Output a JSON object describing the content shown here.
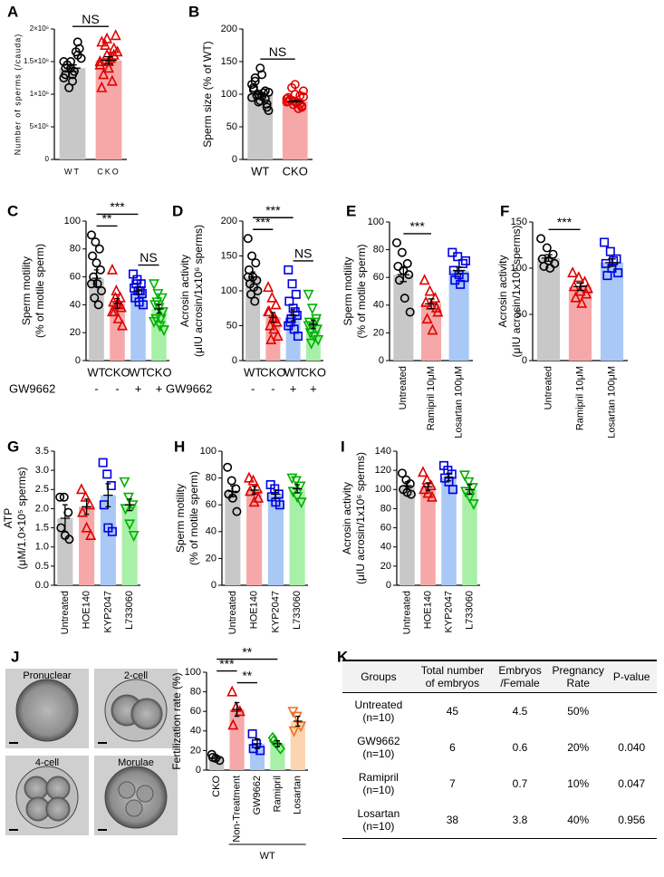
{
  "chart_data": [
    {
      "panel": "A",
      "type": "bar",
      "ylabel": [
        "Number of sperms (/cauda)"
      ],
      "categories": [
        "WT",
        "CKO"
      ],
      "values": [
        1400000,
        1520000
      ],
      "errors": [
        50000,
        55000
      ],
      "points": [
        [
          1500000,
          1400000,
          1600000,
          1300000,
          1200000,
          1700000,
          1450000,
          1350000,
          1550000,
          1100000,
          1650000,
          1250000,
          1500000,
          1800000,
          1400000,
          1300000
        ],
        [
          1500000,
          1600000,
          1700000,
          1800000,
          1400000,
          1900000,
          1300000,
          1550000,
          1650000,
          1750000,
          1200000,
          1450000,
          1850000,
          1600000,
          1100000,
          1500000
        ]
      ],
      "colors": [
        "#c8c8c8",
        "#f6a8a8"
      ],
      "point_colors": [
        "#000000",
        "#e00000"
      ],
      "markers": [
        "circle",
        "triangle"
      ],
      "ylim": [
        0,
        2000000
      ],
      "yticks": [
        0,
        {
          "value": 500000,
          "label": "5×10⁵"
        },
        {
          "value": 1000000,
          "label": "1×10⁶"
        },
        {
          "value": 1500000,
          "label": "1.5×10⁶"
        },
        {
          "value": 2000000,
          "label": "2×10⁶"
        }
      ],
      "annotations": [
        {
          "label": "NS",
          "from": 0,
          "to": 1
        }
      ]
    },
    {
      "panel": "B",
      "type": "bar",
      "ylabel": [
        "Sperm size (% of WT)"
      ],
      "categories": [
        "WT",
        "CKO"
      ],
      "values": [
        100,
        89
      ],
      "errors": [
        1,
        1
      ],
      "points": [
        [
          95,
          100,
          105,
          110,
          90,
          85,
          120,
          130,
          75,
          98,
          102,
          115,
          88,
          93,
          107,
          140,
          80,
          125,
          97,
          103
        ],
        [
          88,
          90,
          85,
          95,
          100,
          80,
          92,
          87,
          105,
          110,
          78,
          93,
          84,
          98,
          89,
          115,
          82,
          91,
          86,
          96
        ]
      ],
      "colors": [
        "#c8c8c8",
        "#f6a8a8"
      ],
      "point_colors": [
        "#000000",
        "#e00000"
      ],
      "markers": [
        "circle",
        "circle"
      ],
      "ylim": [
        0,
        200
      ],
      "yticks": [
        0,
        50,
        100,
        150,
        200
      ],
      "annotations": [
        {
          "label": "NS",
          "from": 0,
          "to": 1
        }
      ]
    },
    {
      "panel": "C",
      "type": "bar",
      "ylabel": [
        "Sperm motility",
        "(% of motile sperm)"
      ],
      "categories": [
        "WT",
        "CKO",
        "WT",
        "CKO"
      ],
      "row_label": "GW9662",
      "row_values": [
        "-",
        "-",
        "+",
        "+"
      ],
      "values": [
        59,
        41,
        50,
        37
      ],
      "errors": [
        6,
        3.5,
        2.5,
        3
      ],
      "points": [
        [
          90,
          85,
          80,
          75,
          70,
          65,
          60,
          55,
          50,
          45,
          40,
          55
        ],
        [
          65,
          50,
          45,
          42,
          40,
          38,
          35,
          30,
          25,
          45,
          40,
          35
        ],
        [
          62,
          58,
          55,
          52,
          50,
          48,
          45,
          42,
          40,
          55,
          50
        ],
        [
          55,
          48,
          45,
          40,
          38,
          35,
          30,
          25,
          22,
          42,
          30,
          28
        ]
      ],
      "colors": [
        "#c8c8c8",
        "#f6a8a8",
        "#a9c8f5",
        "#a8f0a8"
      ],
      "point_colors": [
        "#000000",
        "#e00000",
        "#0000e0",
        "#00b000"
      ],
      "markers": [
        "circle",
        "triangle",
        "square",
        "triangle-down"
      ],
      "ylim": [
        0,
        100
      ],
      "yticks": [
        0,
        20,
        40,
        60,
        80,
        100
      ],
      "annotations": [
        {
          "label": "NS",
          "from": 2,
          "to": 3
        },
        {
          "label": "**",
          "from": 0,
          "to": 1
        },
        {
          "label": "***",
          "from": 0,
          "to": 2
        }
      ]
    },
    {
      "panel": "D",
      "type": "bar",
      "ylabel": [
        "Acrosin activity",
        "(μIU acrosin/1x10⁶ sperms)"
      ],
      "categories": [
        "WT",
        "CKO",
        "WT",
        "CKO"
      ],
      "row_label": "GW9662",
      "row_values": [
        "-",
        "-",
        "+",
        "+"
      ],
      "values": [
        120,
        62,
        65,
        52
      ],
      "errors": [
        7,
        7,
        8,
        6
      ],
      "points": [
        [
          175,
          150,
          140,
          130,
          120,
          115,
          110,
          105,
          100,
          95,
          85,
          120
        ],
        [
          105,
          90,
          80,
          70,
          60,
          55,
          50,
          45,
          35,
          30,
          60,
          70
        ],
        [
          130,
          110,
          95,
          85,
          75,
          65,
          55,
          45,
          35,
          60,
          70,
          50
        ],
        [
          95,
          75,
          60,
          55,
          50,
          45,
          40,
          35,
          30,
          25,
          55,
          50
        ]
      ],
      "colors": [
        "#c8c8c8",
        "#f6a8a8",
        "#a9c8f5",
        "#a8f0a8"
      ],
      "point_colors": [
        "#000000",
        "#e00000",
        "#0000e0",
        "#00b000"
      ],
      "markers": [
        "circle",
        "triangle",
        "square",
        "triangle-down"
      ],
      "ylim": [
        0,
        200
      ],
      "yticks": [
        0,
        50,
        100,
        150,
        200
      ],
      "annotations": [
        {
          "label": "NS",
          "from": 2,
          "to": 3
        },
        {
          "label": "***",
          "from": 0,
          "to": 1
        },
        {
          "label": "***",
          "from": 0,
          "to": 2
        }
      ]
    },
    {
      "panel": "E",
      "type": "bar",
      "ylabel": [
        "Sperm motility",
        "(% of motile sperm)"
      ],
      "categories": [
        "Untreated",
        "Ramipril 10μM",
        "Losartan 100μM"
      ],
      "values": [
        62,
        41,
        65
      ],
      "errors": [
        5,
        3.5,
        2.5
      ],
      "points": [
        [
          85,
          78,
          70,
          68,
          65,
          62,
          58,
          45,
          35
        ],
        [
          58,
          50,
          45,
          42,
          40,
          38,
          30,
          22,
          35
        ],
        [
          78,
          75,
          70,
          65,
          62,
          60,
          58,
          55,
          72
        ]
      ],
      "colors": [
        "#c8c8c8",
        "#f6a8a8",
        "#a9c8f5"
      ],
      "point_colors": [
        "#000000",
        "#e00000",
        "#0000e0"
      ],
      "markers": [
        "circle",
        "triangle",
        "square"
      ],
      "ylim": [
        0,
        100
      ],
      "yticks": [
        0,
        20,
        40,
        60,
        80,
        100
      ],
      "annotations": [
        {
          "label": "***",
          "from": 0,
          "to": 1
        }
      ]
    },
    {
      "panel": "F",
      "type": "bar",
      "ylabel": [
        "Acrosin activity",
        "(μIU acrosin/1x10⁶ sperms)"
      ],
      "categories": [
        "Untreated",
        "Ramipril 10μM",
        "Losartan 100μM"
      ],
      "values": [
        111,
        80,
        106
      ],
      "errors": [
        3.5,
        4,
        4
      ],
      "points": [
        [
          132,
          122,
          115,
          110,
          108,
          105,
          102,
          100
        ],
        [
          95,
          90,
          85,
          80,
          75,
          72,
          68,
          62,
          78
        ],
        [
          128,
          118,
          110,
          105,
          100,
          95,
          92,
          108
        ]
      ],
      "colors": [
        "#c8c8c8",
        "#f6a8a8",
        "#a9c8f5"
      ],
      "point_colors": [
        "#000000",
        "#e00000",
        "#0000e0"
      ],
      "markers": [
        "circle",
        "triangle",
        "square"
      ],
      "ylim": [
        0,
        150
      ],
      "yticks": [
        0,
        50,
        100,
        150
      ],
      "annotations": [
        {
          "label": "***",
          "from": 0,
          "to": 1
        }
      ]
    },
    {
      "panel": "G",
      "type": "bar",
      "ylabel": [
        "ATP",
        "(μM/1.0×10⁵ sperms)"
      ],
      "categories": [
        "Untreated",
        "HOE140",
        "KYP2047",
        "L733060"
      ],
      "values": [
        1.75,
        2.05,
        2.35,
        2.1
      ],
      "errors": [
        0.35,
        0.2,
        0.3,
        0.15
      ],
      "points": [
        [
          2.3,
          2.3,
          1.9,
          1.5,
          1.3,
          1.2
        ],
        [
          2.5,
          2.3,
          2.1,
          1.9,
          1.5,
          1.3
        ],
        [
          3.2,
          2.9,
          2.6,
          2.1,
          1.5,
          1.4
        ],
        [
          2.7,
          2.3,
          2.1,
          2.0,
          1.6,
          1.3
        ]
      ],
      "colors": [
        "#c8c8c8",
        "#f6a8a8",
        "#a9c8f5",
        "#a8f0a8"
      ],
      "point_colors": [
        "#000000",
        "#e00000",
        "#0000e0",
        "#00b000"
      ],
      "markers": [
        "circle",
        "triangle",
        "square",
        "triangle-down"
      ],
      "ylim": [
        0,
        3.5
      ],
      "yticks": [
        {
          "value": 0,
          "label": "0.0"
        },
        0.5,
        {
          "value": 1,
          "label": "1.0"
        },
        1.5,
        {
          "value": 2,
          "label": "2.0"
        },
        2.5,
        {
          "value": 3,
          "label": "3.0"
        },
        3.5
      ]
    },
    {
      "panel": "H",
      "type": "bar",
      "ylabel": [
        "Sperm motility",
        "(% of motile sperm)"
      ],
      "categories": [
        "Untreated",
        "HOE140",
        "KYP2047",
        "L733060"
      ],
      "values": [
        70,
        71,
        68,
        72
      ],
      "errors": [
        4,
        3,
        3,
        3
      ],
      "points": [
        [
          88,
          78,
          72,
          68,
          65,
          55
        ],
        [
          80,
          78,
          72,
          70,
          62,
          65
        ],
        [
          75,
          72,
          68,
          66,
          62,
          60
        ],
        [
          80,
          78,
          74,
          70,
          66,
          62
        ]
      ],
      "colors": [
        "#c8c8c8",
        "#f6a8a8",
        "#a9c8f5",
        "#a8f0a8"
      ],
      "point_colors": [
        "#000000",
        "#e00000",
        "#0000e0",
        "#00b000"
      ],
      "markers": [
        "circle",
        "triangle",
        "square",
        "triangle-down"
      ],
      "ylim": [
        0,
        100
      ],
      "yticks": [
        0,
        20,
        40,
        60,
        80,
        100
      ]
    },
    {
      "panel": "I",
      "type": "bar",
      "ylabel": [
        "Acrosin activity",
        "(μIU acrosin/1x10⁶ sperms)"
      ],
      "categories": [
        "Untreated",
        "HOE140",
        "KYP2047",
        "L733060"
      ],
      "values": [
        104,
        103,
        113,
        100
      ],
      "errors": [
        4,
        4,
        4,
        5
      ],
      "points": [
        [
          117,
          110,
          106,
          100,
          97,
          95
        ],
        [
          118,
          110,
          104,
          100,
          96,
          92
        ],
        [
          125,
          120,
          116,
          112,
          108,
          100
        ],
        [
          115,
          108,
          102,
          98,
          92,
          85
        ]
      ],
      "colors": [
        "#c8c8c8",
        "#f6a8a8",
        "#a9c8f5",
        "#a8f0a8"
      ],
      "point_colors": [
        "#000000",
        "#e00000",
        "#0000e0",
        "#00b000"
      ],
      "markers": [
        "circle",
        "triangle",
        "square",
        "triangle-down"
      ],
      "ylim": [
        0,
        140
      ],
      "yticks": [
        0,
        20,
        40,
        60,
        80,
        100,
        120,
        140
      ]
    },
    {
      "panel": "J",
      "type": "bar",
      "ylabel": [
        "Fertilization rate (%)"
      ],
      "categories": [
        "CKO",
        "Non-Treatment",
        "GW9662",
        "Ramipril",
        "Losartan"
      ],
      "group": {
        "label": "WT",
        "from": 1,
        "to": 4
      },
      "values": [
        12,
        62,
        27,
        27,
        50
      ],
      "errors": [
        2,
        7,
        5,
        3,
        5
      ],
      "points": [
        [
          16,
          12,
          10,
          13
        ],
        [
          80,
          64,
          60,
          46
        ],
        [
          37,
          27,
          20,
          22
        ],
        [
          33,
          27,
          22,
          30
        ],
        [
          60,
          55,
          45,
          40
        ]
      ],
      "colors": [
        "#c8c8c8",
        "#f6a8a8",
        "#a9c8f5",
        "#a8f0a8",
        "#fcd5b0"
      ],
      "point_colors": [
        "#000000",
        "#e00000",
        "#0000e0",
        "#00b000",
        "#f07020"
      ],
      "markers": [
        "circle",
        "triangle",
        "square",
        "diamond",
        "triangle-down"
      ],
      "ylim": [
        0,
        100
      ],
      "yticks": [
        0,
        20,
        40,
        60,
        80,
        100
      ],
      "annotations": [
        {
          "label": "**",
          "from": 1,
          "to": 2
        },
        {
          "label": "***",
          "from": 0,
          "to": 1
        },
        {
          "label": "**",
          "from": 0,
          "to": 3
        }
      ]
    }
  ],
  "images": [
    "Pronuclear",
    "2-cell",
    "4-cell",
    "Morulae"
  ],
  "table": {
    "panel": "K",
    "header": [
      "Groups",
      "Total number of embryos",
      "Embryos /Female",
      "Pregnancy Rate",
      "P-value"
    ],
    "rows": [
      [
        "Untreated (n=10)",
        "45",
        "4.5",
        "50%",
        null
      ],
      [
        "GW9662 (n=10)",
        "6",
        "0.6",
        "20%",
        "0.040"
      ],
      [
        "Ramipril (n=10)",
        "7",
        "0.7",
        "10%",
        "0.047"
      ],
      [
        "Losartan (n=10)",
        "38",
        "3.8",
        "40%",
        "0.956"
      ]
    ]
  }
}
